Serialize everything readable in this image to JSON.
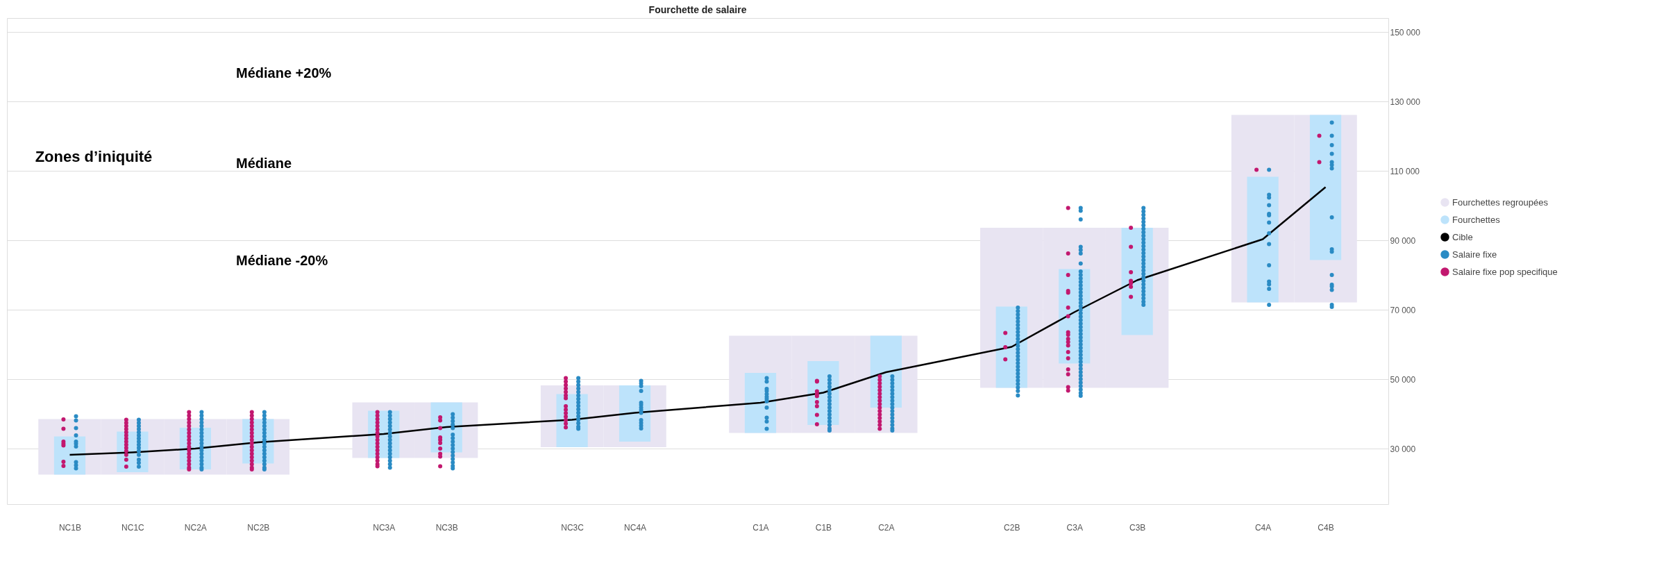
{
  "chart_data": {
    "type": "bar",
    "title": "Fourchette de salaire",
    "categories": [
      "NC1B",
      "NC1C",
      "NC2A",
      "NC2B",
      null,
      "NC3A",
      "NC3B",
      null,
      "NC3C",
      "NC4A",
      null,
      "C1A",
      "C1B",
      "C2A",
      null,
      "C2B",
      "C3A",
      "C3B",
      null,
      "C4A",
      "C4B"
    ],
    "ylim": [
      14000,
      154000
    ],
    "yticks": [
      {
        "value": 30000,
        "label": "30 000"
      },
      {
        "value": 50000,
        "label": "50 000"
      },
      {
        "value": 70000,
        "label": "70 000"
      },
      {
        "value": 90000,
        "label": "90 000"
      },
      {
        "value": 110000,
        "label": "110 000"
      },
      {
        "value": 130000,
        "label": "130 000"
      },
      {
        "value": 150000,
        "label": "150 000"
      }
    ],
    "grid": "y",
    "legend": "right",
    "annotations": [
      "Zones d’iniquité",
      "Médiane +20%",
      "Médiane",
      "Médiane -20%"
    ],
    "series": [
      {
        "name": "Fourchettes regroupées",
        "color": "#e8e4f2",
        "base": [
          22500,
          22500,
          22500,
          22500,
          null,
          27300,
          27300,
          null,
          30400,
          30400,
          null,
          34500,
          34500,
          34500,
          null,
          47500,
          47500,
          47500,
          null,
          72100,
          72100
        ],
        "values": [
          16000,
          16000,
          16000,
          16000,
          null,
          16000,
          16000,
          null,
          17800,
          17800,
          null,
          28000,
          28000,
          28000,
          null,
          46100,
          46100,
          46100,
          null,
          54000,
          54000
        ]
      },
      {
        "name": "Fourchettes",
        "color": "#bde3fb",
        "base": [
          22500,
          23200,
          24000,
          25700,
          null,
          27300,
          28900,
          null,
          30400,
          32000,
          null,
          34500,
          36800,
          41800,
          null,
          47500,
          54500,
          62700,
          null,
          72100,
          84300
        ],
        "values": [
          11000,
          11700,
          12000,
          12800,
          null,
          13600,
          14400,
          null,
          15300,
          16200,
          null,
          17300,
          18400,
          20700,
          null,
          23400,
          27200,
          30900,
          null,
          36200,
          41800
        ]
      },
      {
        "name": "Cible",
        "type": "line",
        "color": "#000000",
        "line_style": "solid",
        "values": [
          28200,
          28900,
          30000,
          31800,
          null,
          34200,
          36200,
          null,
          38300,
          40300,
          null,
          43200,
          46100,
          52000,
          null,
          59300,
          69300,
          78500,
          null,
          90300,
          105300
        ]
      },
      {
        "name": "Salaire fixe",
        "type": "scatter",
        "color": "#2a8bc4",
        "marker": "circle",
        "x": [
          "NC1B",
          "NC1B",
          "NC1B",
          "NC1B",
          "NC1B",
          "NC1B",
          "NC1B",
          "NC1B",
          "NC1B",
          "NC1B",
          "NC1C",
          "NC1C",
          "NC1C",
          "NC1C",
          "NC1C",
          "NC1C",
          "NC1C",
          "NC1C",
          "NC1C",
          "NC1C",
          "NC1C",
          "NC1C",
          "NC1C",
          "NC1C",
          "NC1C",
          "NC2A",
          "NC2A",
          "NC2A",
          "NC2A",
          "NC2A",
          "NC2A",
          "NC2A",
          "NC2A",
          "NC2A",
          "NC2A",
          "NC2A",
          "NC2A",
          "NC2A",
          "NC2A",
          "NC2A",
          "NC2A",
          "NC2A",
          "NC2A",
          "NC2B",
          "NC2B",
          "NC2B",
          "NC2B",
          "NC2B",
          "NC2B",
          "NC2B",
          "NC2B",
          "NC2B",
          "NC2B",
          "NC2B",
          "NC2B",
          "NC2B",
          "NC2B",
          "NC2B",
          "NC2B",
          "NC2B",
          "NC2B",
          "NC3A",
          "NC3A",
          "NC3A",
          "NC3A",
          "NC3A",
          "NC3A",
          "NC3A",
          "NC3A",
          "NC3A",
          "NC3A",
          "NC3A",
          "NC3A",
          "NC3A",
          "NC3A",
          "NC3A",
          "NC3A",
          "NC3A",
          "NC3B",
          "NC3B",
          "NC3B",
          "NC3B",
          "NC3B",
          "NC3B",
          "NC3B",
          "NC3B",
          "NC3B",
          "NC3B",
          "NC3B",
          "NC3B",
          "NC3B",
          "NC3B",
          "NC3B",
          "NC3B",
          "NC3C",
          "NC3C",
          "NC3C",
          "NC3C",
          "NC3C",
          "NC3C",
          "NC3C",
          "NC3C",
          "NC3C",
          "NC3C",
          "NC3C",
          "NC3C",
          "NC3C",
          "NC3C",
          "NC3C",
          "NC3C",
          "NC4A",
          "NC4A",
          "NC4A",
          "NC4A",
          "NC4A",
          "NC4A",
          "NC4A",
          "NC4A",
          "NC4A",
          "NC4A",
          "NC4A",
          "NC4A",
          "NC4A",
          "C1A",
          "C1A",
          "C1A",
          "C1A",
          "C1A",
          "C1A",
          "C1A",
          "C1A",
          "C1A",
          "C1A",
          "C1A",
          "C1A",
          "C1B",
          "C1B",
          "C1B",
          "C1B",
          "C1B",
          "C1B",
          "C1B",
          "C1B",
          "C1B",
          "C1B",
          "C1B",
          "C1B",
          "C1B",
          "C1B",
          "C1B",
          "C1B",
          "C1B",
          "C2A",
          "C2A",
          "C2A",
          "C2A",
          "C2A",
          "C2A",
          "C2A",
          "C2A",
          "C2A",
          "C2A",
          "C2A",
          "C2A",
          "C2A",
          "C2A",
          "C2A",
          "C2A",
          "C2A",
          "C2B",
          "C2B",
          "C2B",
          "C2B",
          "C2B",
          "C2B",
          "C2B",
          "C2B",
          "C2B",
          "C2B",
          "C2B",
          "C2B",
          "C2B",
          "C2B",
          "C2B",
          "C2B",
          "C2B",
          "C2B",
          "C2B",
          "C2B",
          "C2B",
          "C2B",
          "C2B",
          "C2B",
          "C2B",
          "C2B",
          "C3A",
          "C3A",
          "C3A",
          "C3A",
          "C3A",
          "C3A",
          "C3A",
          "C3A",
          "C3A",
          "C3A",
          "C3A",
          "C3A",
          "C3A",
          "C3A",
          "C3A",
          "C3A",
          "C3A",
          "C3A",
          "C3A",
          "C3A",
          "C3A",
          "C3A",
          "C3A",
          "C3A",
          "C3A",
          "C3A",
          "C3A",
          "C3A",
          "C3A",
          "C3A",
          "C3A",
          "C3A",
          "C3A",
          "C3A",
          "C3A",
          "C3A",
          "C3A",
          "C3A",
          "C3A",
          "C3A",
          "C3A",
          "C3A",
          "C3A",
          "C3A",
          "C3B",
          "C3B",
          "C3B",
          "C3B",
          "C3B",
          "C3B",
          "C3B",
          "C3B",
          "C3B",
          "C3B",
          "C3B",
          "C3B",
          "C3B",
          "C3B",
          "C3B",
          "C3B",
          "C3B",
          "C3B",
          "C3B",
          "C3B",
          "C3B",
          "C3B",
          "C3B",
          "C3B",
          "C3B",
          "C3B",
          "C3B",
          "C3B",
          "C3B",
          "C4A",
          "C4A",
          "C4A",
          "C4A",
          "C4A",
          "C4A",
          "C4A",
          "C4A",
          "C4A",
          "C4A",
          "C4A",
          "C4A",
          "C4A",
          "C4A",
          "C4B",
          "C4B",
          "C4B",
          "C4B",
          "C4B",
          "C4B",
          "C4B",
          "C4B",
          "C4B",
          "C4B",
          "C4B",
          "C4B",
          "C4B",
          "C4B",
          "C4B",
          "C4B"
        ],
        "values": [
          39300,
          38100,
          35900,
          33800,
          32000,
          31400,
          30600,
          26100,
          25200,
          24300,
          38300,
          37400,
          36500,
          35600,
          34700,
          33800,
          32900,
          32000,
          31100,
          30200,
          29300,
          28200,
          26800,
          25900,
          24800,
          40500,
          39500,
          38500,
          37500,
          36500,
          35500,
          34500,
          33500,
          32500,
          31500,
          30500,
          29500,
          28500,
          27500,
          26500,
          25500,
          24500,
          24000,
          40500,
          39500,
          38500,
          37500,
          36500,
          35500,
          34500,
          33500,
          32500,
          31500,
          30500,
          29500,
          28500,
          27500,
          26500,
          25500,
          24500,
          24000,
          40500,
          39500,
          38500,
          37500,
          36500,
          35500,
          34500,
          33500,
          32500,
          31500,
          30500,
          29500,
          28500,
          27500,
          26500,
          25500,
          24500,
          39900,
          38900,
          37900,
          36900,
          35900,
          34000,
          33000,
          32000,
          31000,
          30000,
          29000,
          28000,
          27000,
          26000,
          25000,
          24300,
          50300,
          49300,
          48300,
          47300,
          46300,
          45300,
          44300,
          43300,
          42300,
          41300,
          40300,
          39300,
          38300,
          37300,
          36300,
          35700,
          49500,
          48800,
          48000,
          46600,
          43200,
          42600,
          41800,
          41100,
          40300,
          38200,
          37400,
          36600,
          35800,
          50300,
          49300,
          47200,
          46600,
          45700,
          44900,
          44300,
          43600,
          41800,
          38900,
          37800,
          35700,
          50800,
          49800,
          48800,
          47800,
          46800,
          45800,
          44800,
          43800,
          42800,
          41800,
          40800,
          39800,
          38800,
          37800,
          36800,
          35800,
          35200,
          50800,
          49800,
          48800,
          47800,
          46800,
          45800,
          44800,
          43800,
          42800,
          41800,
          40800,
          39800,
          38800,
          37800,
          36800,
          35800,
          35200,
          70600,
          69600,
          68600,
          67600,
          66600,
          65600,
          64600,
          63600,
          62600,
          61600,
          60600,
          59600,
          58600,
          57600,
          56600,
          55600,
          54600,
          53600,
          52600,
          51600,
          50600,
          49600,
          48600,
          47600,
          46600,
          45300,
          99300,
          98500,
          96000,
          88100,
          87200,
          86200,
          83300,
          81000,
          80000,
          79000,
          78000,
          77000,
          76000,
          75000,
          74000,
          73000,
          72000,
          71000,
          70000,
          69000,
          68000,
          67000,
          66000,
          65000,
          64000,
          63000,
          62000,
          61000,
          60000,
          59000,
          58000,
          57000,
          56000,
          55000,
          54000,
          53000,
          52000,
          51000,
          50000,
          49000,
          48000,
          47000,
          46000,
          45200,
          99300,
          98300,
          97300,
          96300,
          95300,
          94300,
          93300,
          92300,
          91300,
          90300,
          89300,
          88300,
          87300,
          86300,
          85300,
          84300,
          83300,
          82300,
          81300,
          80300,
          79300,
          78300,
          77300,
          76300,
          75300,
          74300,
          73300,
          72300,
          71400,
          110300,
          103100,
          102300,
          100100,
          97600,
          97200,
          95100,
          92000,
          88900,
          82800,
          78100,
          77300,
          76000,
          71400,
          123900,
          120100,
          117400,
          114900,
          112500,
          111700,
          110700,
          96600,
          87400,
          86700,
          80000,
          77200,
          76700,
          75700,
          71400,
          70800
        ]
      },
      {
        "name": "Salaire fixe pop specifique",
        "type": "scatter",
        "color": "#c2186f",
        "marker": "circle",
        "x": [
          "NC1B",
          "NC1B",
          "NC1B",
          "NC1B",
          "NC1B",
          "NC1B",
          "NC1B",
          "NC1C",
          "NC1C",
          "NC1C",
          "NC1C",
          "NC1C",
          "NC1C",
          "NC1C",
          "NC1C",
          "NC1C",
          "NC1C",
          "NC1C",
          "NC1C",
          "NC1C",
          "NC1C",
          "NC2A",
          "NC2A",
          "NC2A",
          "NC2A",
          "NC2A",
          "NC2A",
          "NC2A",
          "NC2A",
          "NC2A",
          "NC2A",
          "NC2A",
          "NC2A",
          "NC2A",
          "NC2A",
          "NC2A",
          "NC2A",
          "NC2A",
          "NC2A",
          "NC2B",
          "NC2B",
          "NC2B",
          "NC2B",
          "NC2B",
          "NC2B",
          "NC2B",
          "NC2B",
          "NC2B",
          "NC2B",
          "NC2B",
          "NC2B",
          "NC2B",
          "NC2B",
          "NC2B",
          "NC2B",
          "NC2B",
          "NC2B",
          "NC3A",
          "NC3A",
          "NC3A",
          "NC3A",
          "NC3A",
          "NC3A",
          "NC3A",
          "NC3A",
          "NC3A",
          "NC3A",
          "NC3A",
          "NC3A",
          "NC3A",
          "NC3A",
          "NC3A",
          "NC3A",
          "NC3A",
          "NC3B",
          "NC3B",
          "NC3B",
          "NC3B",
          "NC3B",
          "NC3B",
          "NC3B",
          "NC3B",
          "NC3B",
          "NC3B",
          "NC3C",
          "NC3C",
          "NC3C",
          "NC3C",
          "NC3C",
          "NC3C",
          "NC3C",
          "NC3C",
          "NC3C",
          "NC3C",
          "NC3C",
          "NC3C",
          "NC3C",
          "NC3C",
          "C1B",
          "C1B",
          "C1B",
          "C1B",
          "C1B",
          "C1B",
          "C1B",
          "C1B",
          "C1B",
          "C2A",
          "C2A",
          "C2A",
          "C2A",
          "C2A",
          "C2A",
          "C2A",
          "C2A",
          "C2A",
          "C2A",
          "C2A",
          "C2A",
          "C2A",
          "C2A",
          "C2A",
          "C2A",
          "C2B",
          "C2B",
          "C2B",
          "C3A",
          "C3A",
          "C3A",
          "C3A",
          "C3A",
          "C3A",
          "C3A",
          "C3A",
          "C3A",
          "C3A",
          "C3A",
          "C3A",
          "C3A",
          "C3A",
          "C3A",
          "C3A",
          "C3A",
          "C3A",
          "C3B",
          "C3B",
          "C3B",
          "C3B",
          "C3B",
          "C3B",
          "C3B",
          "C4A",
          "C4B",
          "C4B"
        ],
        "values": [
          38400,
          35700,
          32000,
          31400,
          30900,
          26200,
          25000,
          38300,
          37400,
          36500,
          35600,
          34700,
          33800,
          32900,
          32000,
          31100,
          30200,
          29300,
          28200,
          26800,
          24800,
          40500,
          39500,
          38500,
          37500,
          36500,
          35500,
          34500,
          33500,
          32500,
          31500,
          30500,
          29500,
          28500,
          27500,
          26500,
          25500,
          24500,
          24000,
          40500,
          39500,
          38500,
          37500,
          36500,
          35500,
          34500,
          33500,
          32500,
          31500,
          30500,
          29500,
          28500,
          27500,
          26500,
          25500,
          24500,
          24000,
          40500,
          39500,
          38500,
          37500,
          36500,
          35500,
          34500,
          33500,
          32500,
          31500,
          30500,
          29500,
          28500,
          27500,
          26500,
          25500,
          24900,
          39000,
          38100,
          35900,
          33200,
          32500,
          31600,
          30000,
          28500,
          27700,
          24900,
          50300,
          49300,
          48300,
          47300,
          46300,
          45300,
          44500,
          42200,
          41200,
          40200,
          39200,
          38200,
          37200,
          36100,
          49500,
          49300,
          46500,
          45700,
          45100,
          43400,
          42200,
          39700,
          37000,
          50800,
          49800,
          48800,
          47800,
          46800,
          45800,
          44800,
          43800,
          42800,
          41800,
          40800,
          39800,
          38800,
          37800,
          36800,
          35700,
          63300,
          59200,
          55700,
          99300,
          86200,
          80000,
          75400,
          74900,
          70600,
          68100,
          63500,
          62800,
          61600,
          60700,
          59700,
          57800,
          56000,
          52800,
          51400,
          47700,
          46700,
          93600,
          88100,
          80800,
          78300,
          77600,
          76600,
          73700,
          110300,
          120100,
          112500
        ]
      }
    ]
  }
}
